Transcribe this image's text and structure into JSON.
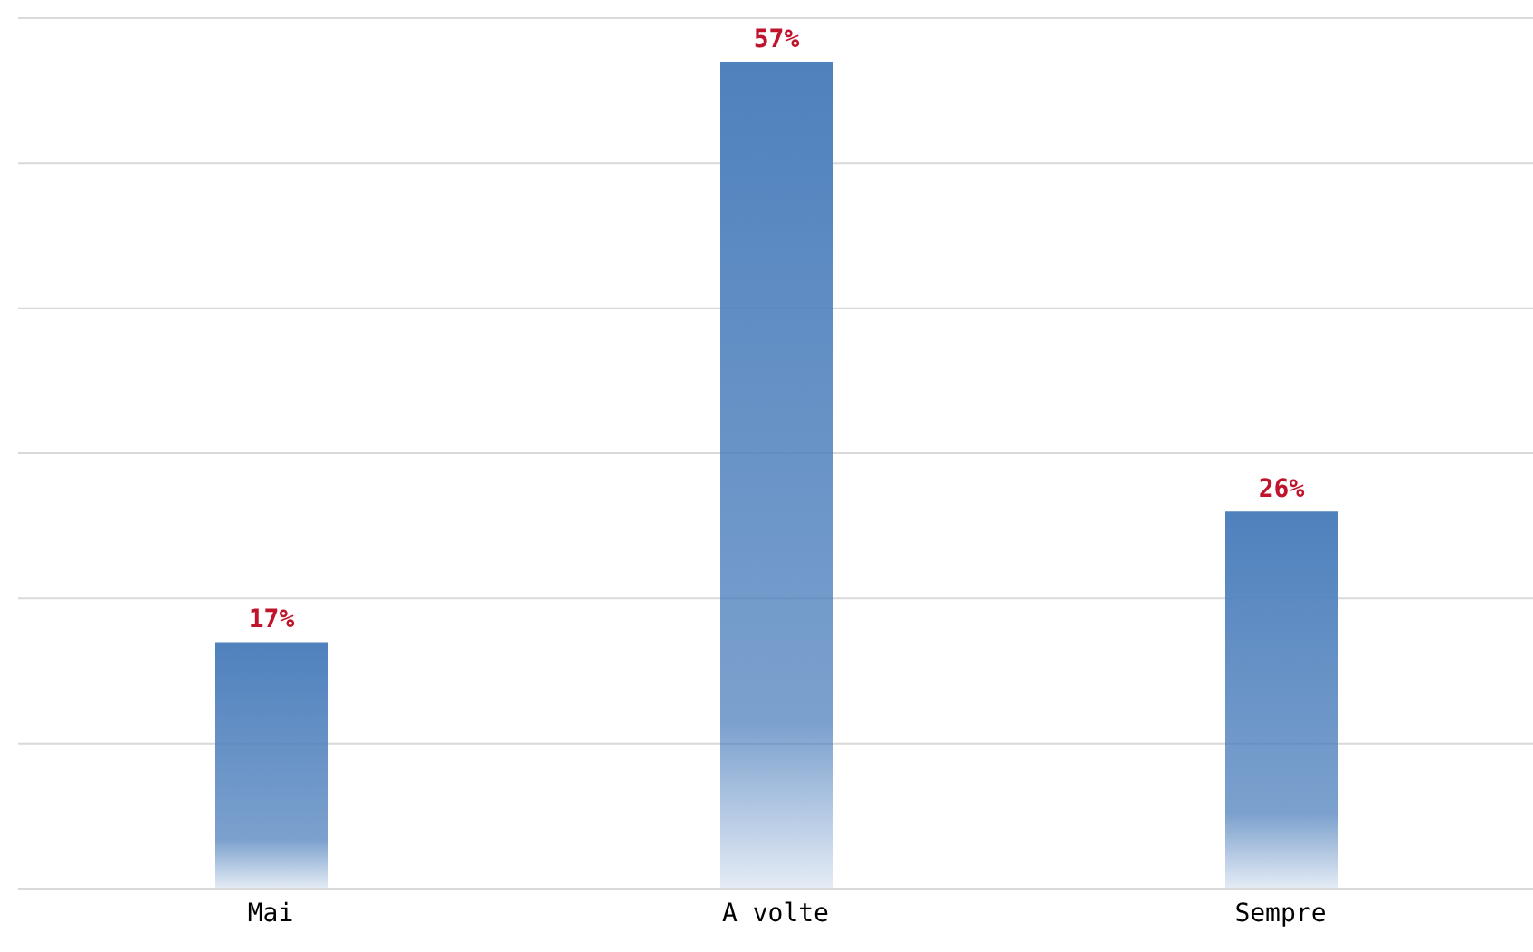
{
  "chart_data": {
    "type": "bar",
    "categories": [
      "Mai",
      "A volte",
      "Sempre"
    ],
    "values": [
      17,
      57,
      26
    ],
    "value_labels": [
      "17%",
      "57%",
      "26%"
    ],
    "color": "#4f81bd",
    "ylim": [
      0,
      60
    ],
    "yticks": [
      {
        "value": 0,
        "label": null
      },
      {
        "value": 10,
        "label": null
      },
      {
        "value": 20,
        "label": null
      },
      {
        "value": 30,
        "label": null
      },
      {
        "value": 40,
        "label": null
      },
      {
        "value": 50,
        "label": null
      },
      {
        "value": 60,
        "label": null
      }
    ],
    "tick_labels": "x",
    "grid": "y"
  }
}
